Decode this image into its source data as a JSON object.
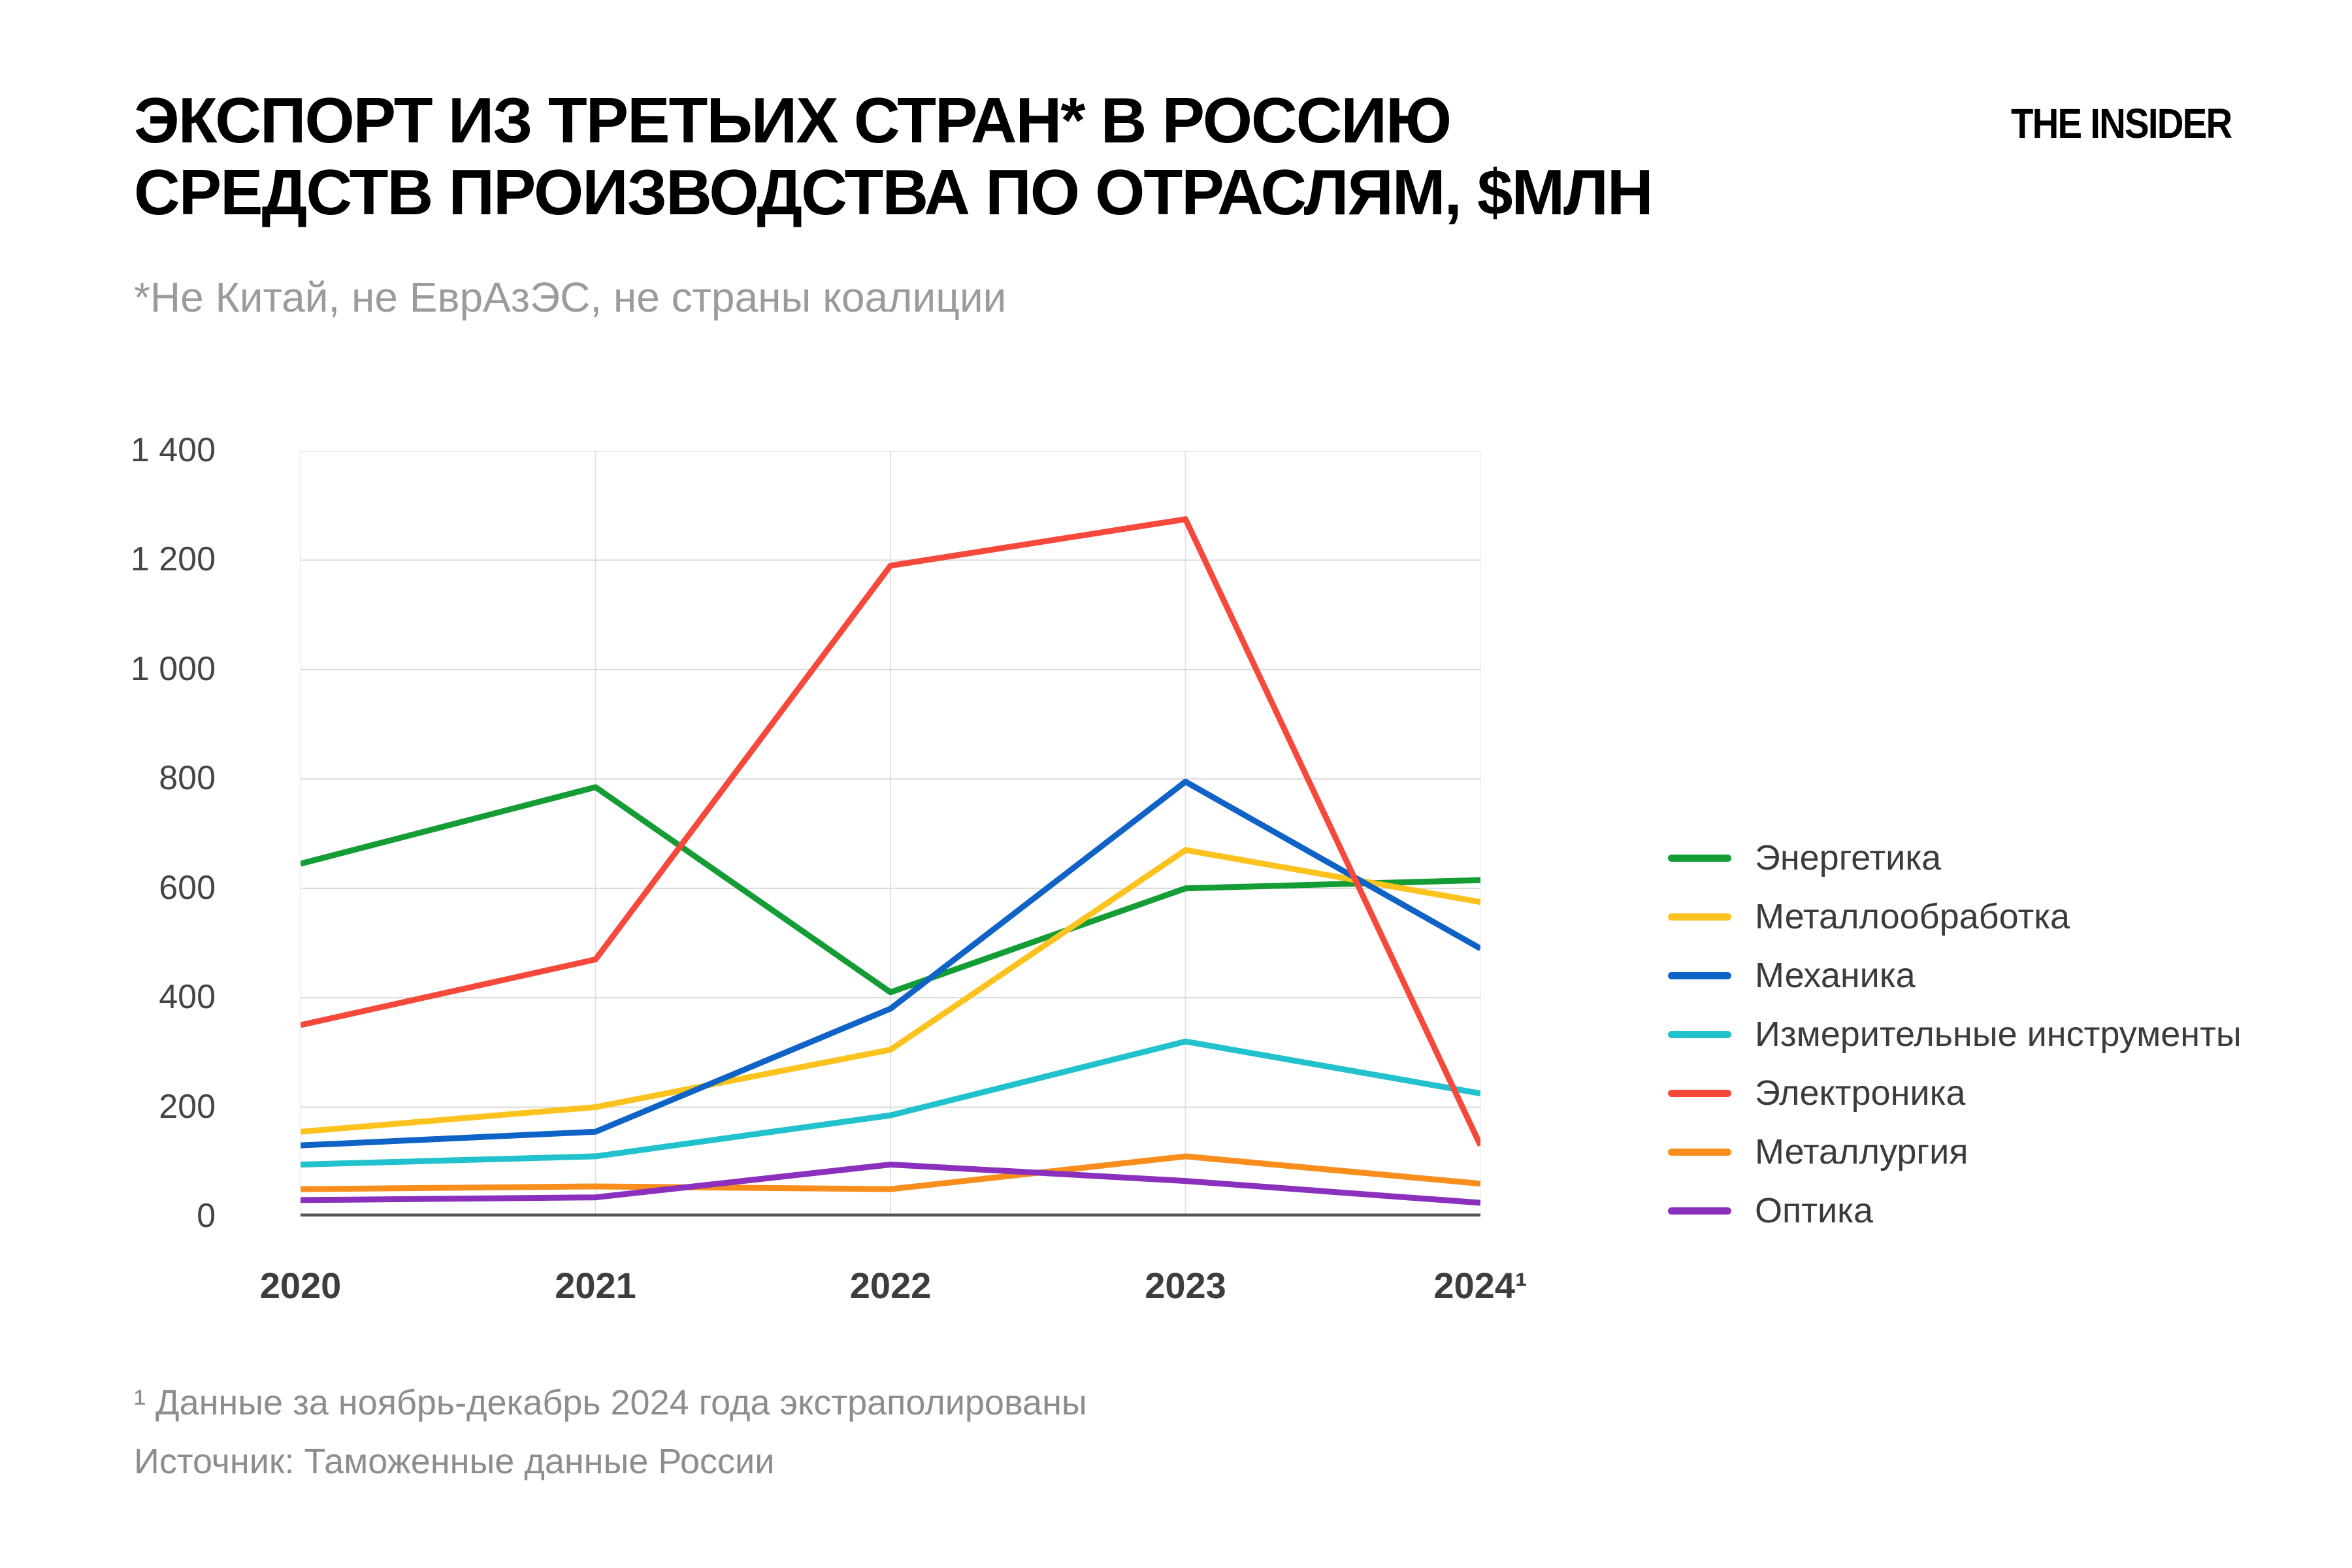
{
  "header": {
    "title": "ЭКСПОРТ ИЗ ТРЕТЬИХ СТРАН* В РОССИЮ\nСРЕДСТВ ПРОИЗВОДСТВА ПО ОТРАСЛЯМ, $МЛН",
    "subtitle": "*Не Китай, не ЕврАзЭС, не страны коалиции",
    "logo": "THE INSIDER"
  },
  "chart_data": {
    "type": "line",
    "title": "Экспорт из третьих стран в Россию средств производства по отраслям, $млн",
    "categories": [
      "2020",
      "2021",
      "2022",
      "2023",
      "2024"
    ],
    "x_tick_labels": [
      "2020",
      "2021",
      "2022",
      "2023",
      "2024¹"
    ],
    "ylim": [
      0,
      1400
    ],
    "y_ticks": [
      0,
      200,
      400,
      600,
      800,
      1000,
      1200,
      1400
    ],
    "y_tick_labels": [
      "0",
      "200",
      "400",
      "600",
      "800",
      "1 000",
      "1 200",
      "1 400"
    ],
    "grid": true,
    "legend_position": "right",
    "series": [
      {
        "name": "Энергетика",
        "color": "#149c35",
        "values": [
          645,
          785,
          410,
          600,
          615
        ]
      },
      {
        "name": "Металлообработка",
        "color": "#fcc31e",
        "values": [
          155,
          200,
          305,
          670,
          575
        ]
      },
      {
        "name": "Механика",
        "color": "#1063c6",
        "values": [
          130,
          155,
          380,
          795,
          490
        ]
      },
      {
        "name": "Измерительные инструменты",
        "color": "#21c1cd",
        "values": [
          95,
          110,
          185,
          320,
          225
        ]
      },
      {
        "name": "Электроника",
        "color": "#f6493c",
        "values": [
          350,
          470,
          1190,
          1275,
          130
        ]
      },
      {
        "name": "Металлургия",
        "color": "#f98e1d",
        "values": [
          50,
          55,
          50,
          110,
          60
        ]
      },
      {
        "name": "Оптика",
        "color": "#8a30bd",
        "values": [
          30,
          35,
          95,
          65,
          25
        ]
      }
    ],
    "style": {
      "grid_color": "#d9d9d9",
      "vgrid_color": "#e2e2e2",
      "axis_color": "#565656",
      "line_width": 9
    }
  },
  "footnotes": {
    "line1": "¹ Данные за ноябрь-декабрь 2024 года экстраполированы",
    "line2": "Источник: Таможенные данные России"
  }
}
